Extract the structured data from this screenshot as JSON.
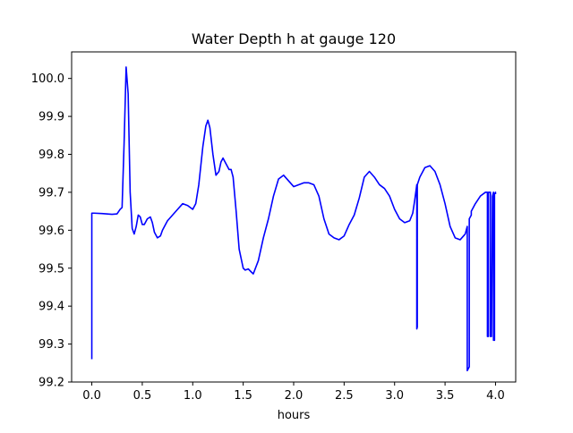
{
  "chart_data": {
    "type": "line",
    "title": "Water Depth h at gauge 120",
    "xlabel": "hours",
    "ylabel": "",
    "xlim": [
      -0.2,
      4.2
    ],
    "ylim": [
      99.2,
      100.07
    ],
    "xticks": [
      0.0,
      0.5,
      1.0,
      1.5,
      2.0,
      2.5,
      3.0,
      3.5,
      4.0
    ],
    "xtick_labels": [
      "0.0",
      "0.5",
      "1.0",
      "1.5",
      "2.0",
      "2.5",
      "3.0",
      "3.5",
      "4.0"
    ],
    "yticks": [
      99.2,
      99.3,
      99.4,
      99.5,
      99.6,
      99.7,
      99.8,
      99.9,
      100.0
    ],
    "ytick_labels": [
      "99.2",
      "99.3",
      "99.4",
      "99.5",
      "99.6",
      "99.7",
      "99.8",
      "99.9",
      "100.0"
    ],
    "grid": false,
    "series": [
      {
        "color": "#0000ff",
        "x": [
          0.0,
          0.0,
          0.02,
          0.1,
          0.2,
          0.25,
          0.28,
          0.3,
          0.32,
          0.34,
          0.36,
          0.38,
          0.4,
          0.42,
          0.44,
          0.46,
          0.48,
          0.5,
          0.52,
          0.55,
          0.58,
          0.6,
          0.62,
          0.65,
          0.68,
          0.7,
          0.75,
          0.8,
          0.85,
          0.9,
          0.95,
          1.0,
          1.03,
          1.06,
          1.1,
          1.13,
          1.15,
          1.17,
          1.2,
          1.23,
          1.26,
          1.28,
          1.3,
          1.33,
          1.36,
          1.38,
          1.4,
          1.43,
          1.46,
          1.5,
          1.52,
          1.55,
          1.58,
          1.6,
          1.65,
          1.7,
          1.75,
          1.8,
          1.85,
          1.9,
          1.95,
          2.0,
          2.05,
          2.1,
          2.15,
          2.2,
          2.25,
          2.3,
          2.35,
          2.4,
          2.45,
          2.5,
          2.55,
          2.6,
          2.65,
          2.7,
          2.75,
          2.8,
          2.85,
          2.9,
          2.95,
          3.0,
          3.05,
          3.1,
          3.15,
          3.18,
          3.2,
          3.22,
          3.22,
          3.225,
          3.225,
          3.25,
          3.3,
          3.35,
          3.4,
          3.45,
          3.5,
          3.55,
          3.6,
          3.65,
          3.7,
          3.72,
          3.72,
          3.74,
          3.74,
          3.76,
          3.76,
          3.8,
          3.85,
          3.9,
          3.92,
          3.92,
          3.93,
          3.93,
          3.95,
          3.95,
          3.96,
          3.97,
          3.98,
          3.98,
          3.99,
          3.99,
          4.0,
          4.0
        ],
        "y": [
          99.26,
          99.645,
          99.645,
          99.644,
          99.642,
          99.643,
          99.655,
          99.66,
          99.83,
          100.03,
          99.96,
          99.7,
          99.605,
          99.59,
          99.61,
          99.64,
          99.635,
          99.615,
          99.615,
          99.63,
          99.635,
          99.62,
          99.595,
          99.58,
          99.585,
          99.6,
          99.625,
          99.64,
          99.655,
          99.67,
          99.665,
          99.655,
          99.67,
          99.72,
          99.82,
          99.875,
          99.89,
          99.87,
          99.8,
          99.745,
          99.755,
          99.78,
          99.79,
          99.775,
          99.76,
          99.76,
          99.74,
          99.65,
          99.55,
          99.5,
          99.495,
          99.498,
          99.49,
          99.485,
          99.52,
          99.58,
          99.63,
          99.69,
          99.735,
          99.745,
          99.73,
          99.715,
          99.72,
          99.725,
          99.725,
          99.72,
          99.69,
          99.63,
          99.59,
          99.58,
          99.575,
          99.585,
          99.615,
          99.64,
          99.685,
          99.74,
          99.755,
          99.74,
          99.72,
          99.71,
          99.69,
          99.655,
          99.63,
          99.62,
          99.625,
          99.645,
          99.68,
          99.72,
          99.34,
          99.345,
          99.72,
          99.74,
          99.765,
          99.77,
          99.755,
          99.72,
          99.67,
          99.61,
          99.58,
          99.575,
          99.59,
          99.61,
          99.23,
          99.24,
          99.63,
          99.64,
          99.65,
          99.67,
          99.69,
          99.7,
          99.7,
          99.32,
          99.32,
          99.7,
          99.7,
          99.32,
          99.32,
          99.69,
          99.7,
          99.31,
          99.31,
          99.695,
          99.7,
          99.695
        ]
      }
    ]
  }
}
